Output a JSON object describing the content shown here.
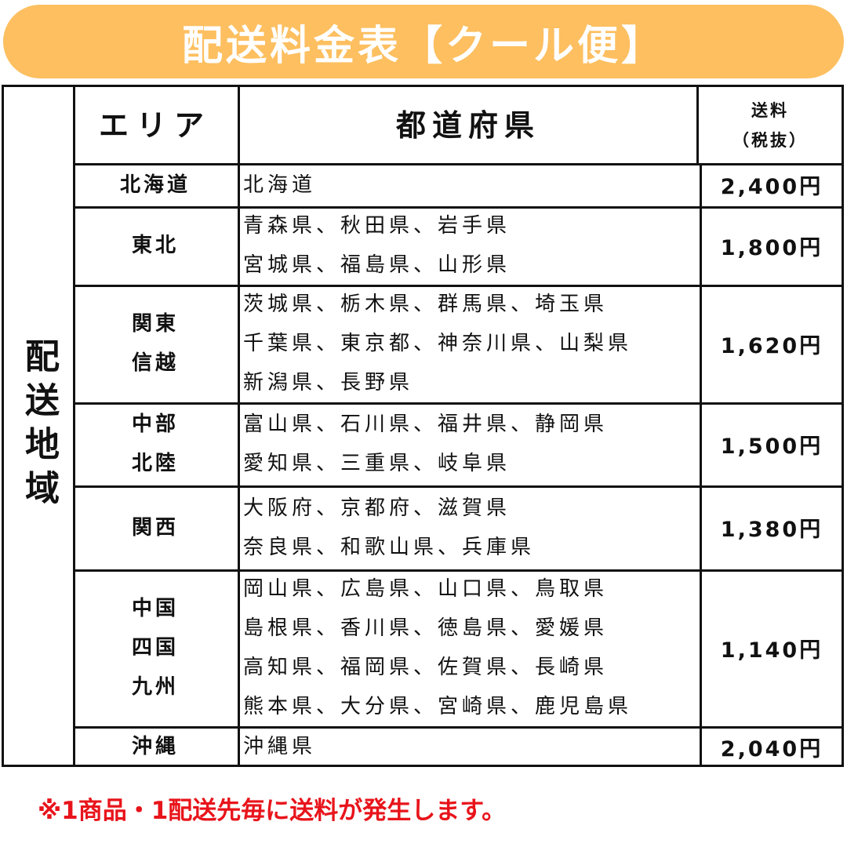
{
  "title": "配送料金表【クール便】",
  "side_label": "配送地域",
  "header": {
    "area": "エリア",
    "prefecture": "都道府県",
    "fee_line1": "送料",
    "fee_line2": "（税抜）"
  },
  "rows": [
    {
      "area": "北海道",
      "prefectures": [
        "北海道"
      ],
      "fee": "2,400円"
    },
    {
      "area": "東北",
      "prefectures": [
        "青森県、秋田県、岩手県",
        "宮城県、福島県、山形県"
      ],
      "fee": "1,800円"
    },
    {
      "area": "関東\n信越",
      "prefectures": [
        "茨城県、栃木県、群馬県、埼玉県",
        "千葉県、東京都、神奈川県、山梨県",
        "新潟県、長野県"
      ],
      "fee": "1,620円"
    },
    {
      "area": "中部\n北陸",
      "prefectures": [
        "富山県、石川県、福井県、静岡県",
        "愛知県、三重県、岐阜県"
      ],
      "fee": "1,500円"
    },
    {
      "area": "関西",
      "prefectures": [
        "大阪府、京都府、滋賀県",
        "奈良県、和歌山県、兵庫県"
      ],
      "fee": "1,380円"
    },
    {
      "area": "中国\n四国\n九州",
      "prefectures": [
        "岡山県、広島県、山口県、鳥取県",
        "島根県、香川県、徳島県、愛媛県",
        "高知県、福岡県、佐賀県、長崎県",
        "熊本県、大分県、宮崎県、鹿児島県"
      ],
      "fee": "1,140円"
    },
    {
      "area": "沖縄",
      "prefectures": [
        "沖縄県"
      ],
      "fee": "2,040円"
    }
  ],
  "note": "※1商品・1配送先毎に送料が発生します。",
  "colors": {
    "title_bg": "#FDBF60",
    "note": "#E8141B"
  }
}
